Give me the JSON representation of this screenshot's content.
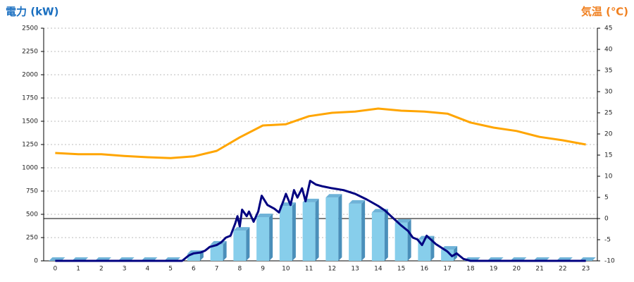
{
  "chart_data": {
    "type": "bar",
    "y_title": "電力 (kW)",
    "y2_title": "気温 (℃)",
    "categories": [
      "0",
      "1",
      "2",
      "3",
      "4",
      "5",
      "6",
      "7",
      "8",
      "9",
      "10",
      "11",
      "12",
      "13",
      "14",
      "15",
      "16",
      "17",
      "18",
      "19",
      "20",
      "21",
      "22",
      "23"
    ],
    "ylim": [
      0,
      2500
    ],
    "yticks": [
      0,
      250,
      500,
      750,
      1000,
      1250,
      1500,
      1750,
      2000,
      2250,
      2500
    ],
    "y2lim": [
      -10,
      45
    ],
    "y2ticks": [
      -10,
      -5,
      0,
      5,
      10,
      15,
      20,
      25,
      30,
      35,
      40,
      45
    ],
    "grid": true,
    "series": [
      {
        "type": "bar",
        "color": "#87ceeb",
        "values": [
          0,
          0,
          0,
          0,
          0,
          0,
          75,
          175,
          325,
          470,
          590,
          630,
          680,
          615,
          520,
          410,
          230,
          120,
          0,
          0,
          0,
          0,
          0,
          0
        ]
      },
      {
        "type": "line",
        "color": "#000080",
        "x": [
          0,
          5.5,
          5.8,
          6,
          6.3,
          6.5,
          6.7,
          7,
          7.2,
          7.4,
          7.6,
          7.8,
          7.9,
          8,
          8.1,
          8.3,
          8.4,
          8.6,
          8.8,
          8.95,
          9.2,
          9.5,
          9.7,
          9.9,
          10,
          10.2,
          10.35,
          10.5,
          10.7,
          10.85,
          11.05,
          11.3,
          11.6,
          12,
          12.5,
          13,
          13.5,
          14,
          14.3,
          14.6,
          15,
          15.3,
          15.5,
          15.7,
          15.9,
          16.1,
          16.5,
          17,
          17.2,
          17.4,
          17.7,
          18,
          23
        ],
        "values": [
          0,
          0,
          60,
          80,
          90,
          110,
          150,
          170,
          200,
          250,
          270,
          400,
          480,
          370,
          550,
          480,
          530,
          420,
          530,
          700,
          600,
          560,
          520,
          650,
          720,
          600,
          760,
          680,
          780,
          640,
          860,
          820,
          800,
          780,
          760,
          720,
          660,
          590,
          540,
          470,
          380,
          320,
          250,
          230,
          170,
          270,
          180,
          100,
          50,
          80,
          20,
          0,
          0
        ]
      },
      {
        "type": "line",
        "axis": "y2",
        "color": "#ffa500",
        "values": [
          15.5,
          15.2,
          15.2,
          14.8,
          14.5,
          14.3,
          14.7,
          16,
          19.2,
          22,
          22.3,
          24.2,
          25,
          25.3,
          26,
          25.5,
          25.3,
          24.8,
          22.7,
          21.5,
          20.7,
          19.3,
          18.5,
          17.5
        ]
      }
    ]
  }
}
